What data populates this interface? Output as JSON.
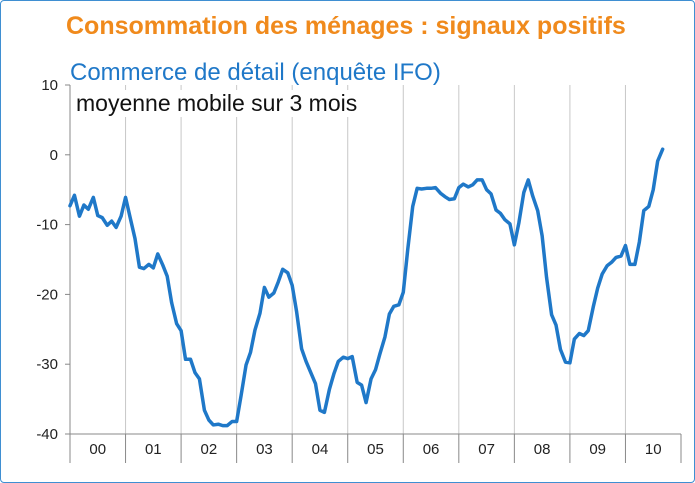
{
  "header": {
    "title": "Consommation des ménages : signaux positifs",
    "subtitle": "Commerce de détail (enquête IFO)",
    "note": "moyenne mobile sur 3 mois"
  },
  "colors": {
    "title": "#f08a1c",
    "subtitle": "#1f78c8",
    "line": "#1f78c8",
    "grid": "#c8c8c8",
    "frame": "#3f8fd2"
  },
  "chart_data": {
    "type": "line",
    "title": "Consommation des ménages : signaux positifs",
    "subtitle": "Commerce de détail (enquête IFO)",
    "annotation": "moyenne mobile sur 3 mois",
    "xlabel": "",
    "ylabel": "",
    "ylim": [
      -40,
      10
    ],
    "yticks": [
      10,
      0,
      -10,
      -20,
      -30,
      -40
    ],
    "xlim": [
      2000.0,
      2011.0
    ],
    "year_ticks": [
      "00",
      "01",
      "02",
      "03",
      "04",
      "05",
      "06",
      "07",
      "08",
      "09",
      "10"
    ],
    "grid": "vertical lines at year boundaries",
    "legend": "none",
    "series": [
      {
        "color": "#1f78c8",
        "x": [
          2000.0,
          2000.08,
          2000.17,
          2000.25,
          2000.33,
          2000.42,
          2000.5,
          2000.58,
          2000.67,
          2000.75,
          2000.83,
          2000.92,
          2001.0,
          2001.08,
          2001.17,
          2001.25,
          2001.33,
          2001.42,
          2001.5,
          2001.58,
          2001.67,
          2001.75,
          2001.83,
          2001.92,
          2002.0,
          2002.08,
          2002.17,
          2002.25,
          2002.33,
          2002.42,
          2002.5,
          2002.58,
          2002.67,
          2002.75,
          2002.83,
          2002.92,
          2003.0,
          2003.08,
          2003.17,
          2003.25,
          2003.33,
          2003.42,
          2003.5,
          2003.58,
          2003.67,
          2003.75,
          2003.83,
          2003.92,
          2004.0,
          2004.08,
          2004.17,
          2004.25,
          2004.33,
          2004.42,
          2004.5,
          2004.58,
          2004.67,
          2004.75,
          2004.83,
          2004.92,
          2005.0,
          2005.08,
          2005.17,
          2005.25,
          2005.33,
          2005.42,
          2005.5,
          2005.58,
          2005.67,
          2005.75,
          2005.83,
          2005.92,
          2006.0,
          2006.08,
          2006.17,
          2006.25,
          2006.33,
          2006.42,
          2006.5,
          2006.58,
          2006.67,
          2006.75,
          2006.83,
          2006.92,
          2007.0,
          2007.08,
          2007.17,
          2007.25,
          2007.33,
          2007.42,
          2007.5,
          2007.58,
          2007.67,
          2007.75,
          2007.83,
          2007.92,
          2008.0,
          2008.08,
          2008.17,
          2008.25,
          2008.33,
          2008.42,
          2008.5,
          2008.58,
          2008.67,
          2008.75,
          2008.83,
          2008.92,
          2009.0,
          2009.08,
          2009.17,
          2009.25,
          2009.33,
          2009.42,
          2009.5,
          2009.58,
          2009.67,
          2009.75,
          2009.83,
          2009.92,
          2010.0,
          2010.08,
          2010.17,
          2010.25,
          2010.33,
          2010.42,
          2010.5,
          2010.58,
          2010.67
        ],
        "y": [
          -7.3,
          -5.8,
          -8.8,
          -7.2,
          -7.8,
          -6.1,
          -8.7,
          -9.0,
          -10.1,
          -9.5,
          -10.4,
          -8.8,
          -6.1,
          -8.9,
          -12.0,
          -16.1,
          -16.3,
          -15.7,
          -16.2,
          -14.2,
          -15.8,
          -17.4,
          -21.2,
          -24.2,
          -25.2,
          -29.3,
          -29.3,
          -31.2,
          -32.1,
          -36.6,
          -38.0,
          -38.7,
          -38.6,
          -38.8,
          -38.8,
          -38.2,
          -38.2,
          -34.5,
          -30.1,
          -28.3,
          -25.1,
          -22.7,
          -19.0,
          -20.4,
          -19.8,
          -18.2,
          -16.4,
          -16.9,
          -18.7,
          -22.5,
          -27.8,
          -29.6,
          -31.1,
          -32.8,
          -36.6,
          -36.9,
          -33.6,
          -31.4,
          -29.6,
          -29.0,
          -29.2,
          -28.9,
          -32.6,
          -33.0,
          -35.5,
          -32.1,
          -30.8,
          -28.5,
          -26.1,
          -22.8,
          -21.7,
          -21.5,
          -19.7,
          -13.6,
          -7.4,
          -4.8,
          -4.9,
          -4.8,
          -4.8,
          -4.7,
          -5.5,
          -6.0,
          -6.4,
          -6.3,
          -4.7,
          -4.2,
          -4.6,
          -4.3,
          -3.6,
          -3.6,
          -5.0,
          -5.6,
          -7.9,
          -8.4,
          -9.3,
          -9.9,
          -12.9,
          -9.8,
          -5.4,
          -3.6,
          -5.9,
          -8.0,
          -11.6,
          -17.6,
          -22.9,
          -24.4,
          -27.9,
          -29.7,
          -29.8,
          -26.4,
          -25.6,
          -25.9,
          -25.2,
          -21.8,
          -19.1,
          -17.1,
          -15.9,
          -15.4,
          -14.7,
          -14.5,
          -13.0,
          -15.7,
          -15.7,
          -12.5,
          -8.0,
          -7.4,
          -5.0,
          -0.9,
          0.8
        ]
      }
    ]
  }
}
